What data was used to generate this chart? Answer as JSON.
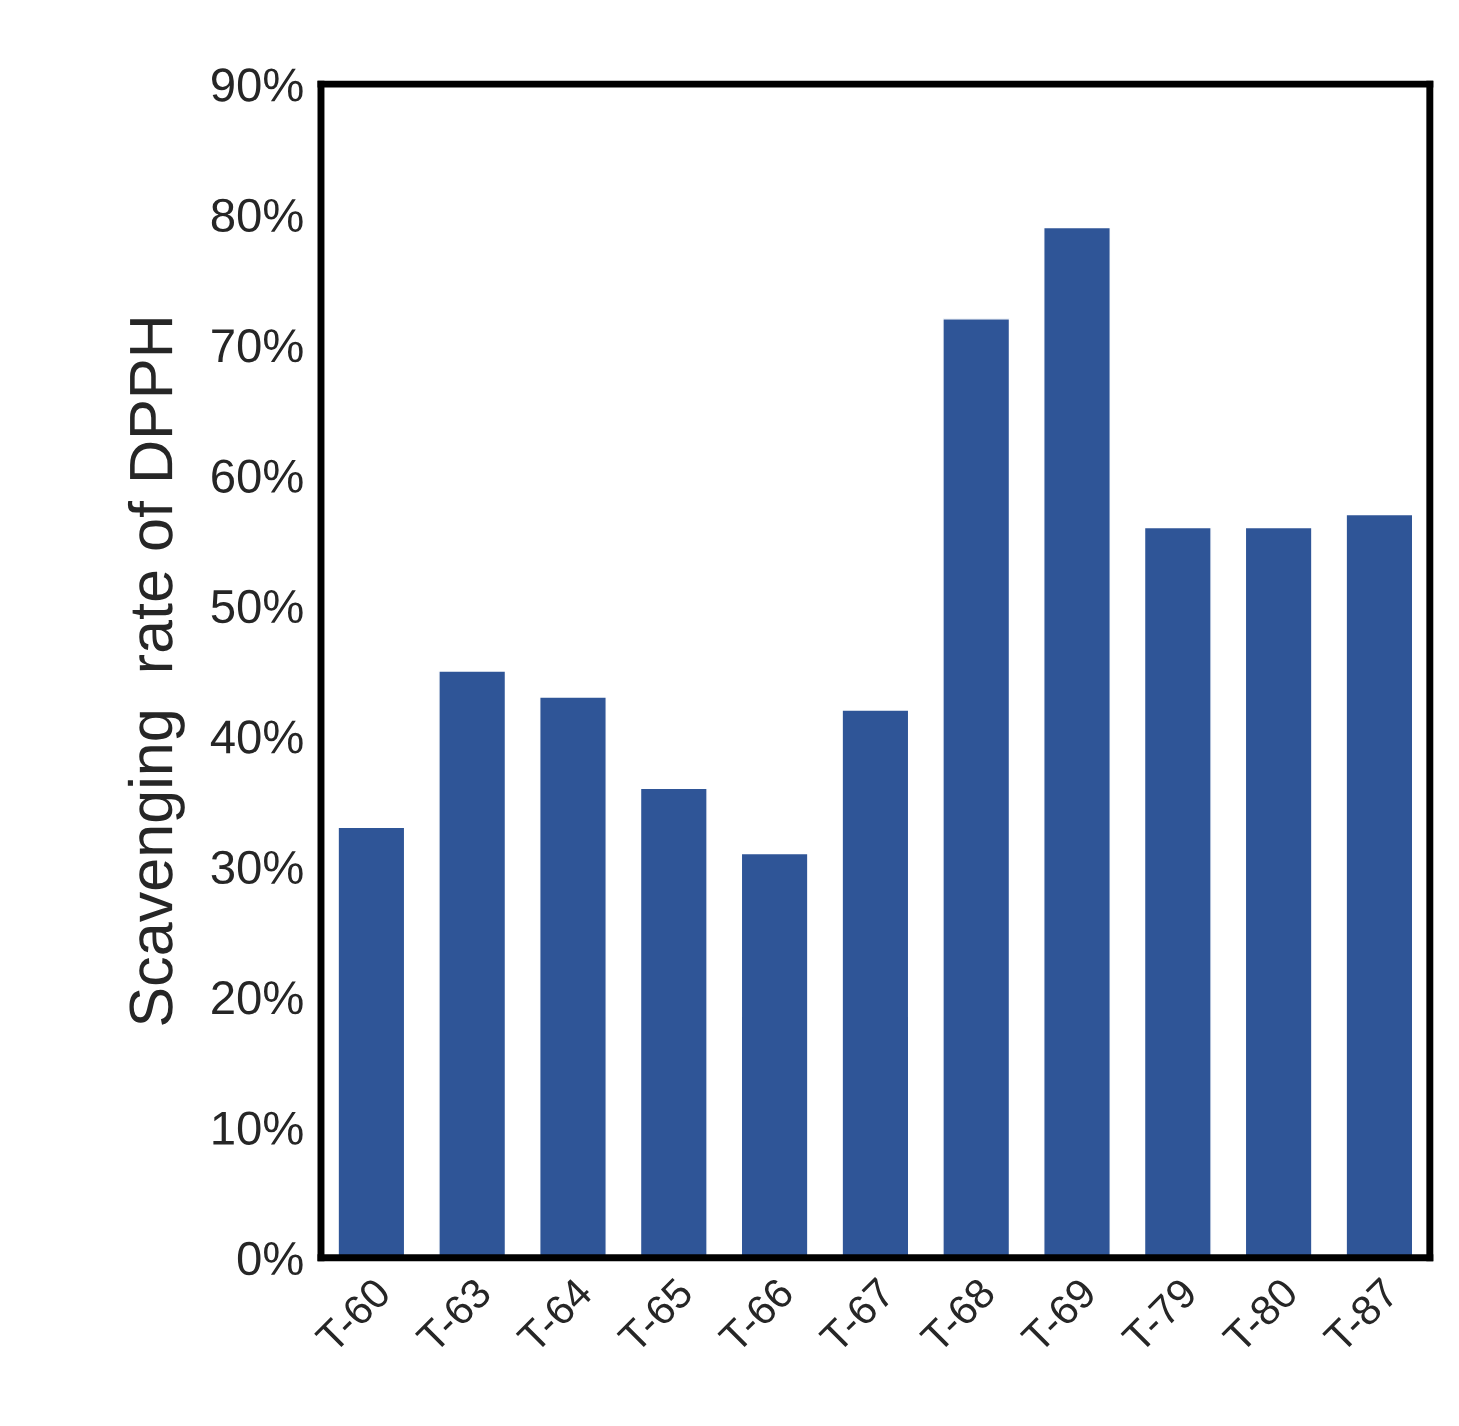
{
  "chart_data": {
    "type": "bar",
    "ylabel": "Scavenging  rate of DPPH",
    "categories": [
      "T-60",
      "T-63",
      "T-64",
      "T-65",
      "T-66",
      "T-67",
      "T-68",
      "T-69",
      "T-79",
      "T-80",
      "T-87"
    ],
    "values": [
      33,
      45,
      43,
      36,
      31,
      42,
      72,
      79,
      56,
      56,
      57
    ],
    "color": "#2f5597",
    "ylim": [
      0,
      90
    ],
    "yticks": [
      {
        "value": 0,
        "label": "0%"
      },
      {
        "value": 10,
        "label": "10%"
      },
      {
        "value": 20,
        "label": "20%"
      },
      {
        "value": 30,
        "label": "30%"
      },
      {
        "value": 40,
        "label": "40%"
      },
      {
        "value": 50,
        "label": "50%"
      },
      {
        "value": 60,
        "label": "60%"
      },
      {
        "value": 70,
        "label": "70%"
      },
      {
        "value": 80,
        "label": "80%"
      },
      {
        "value": 90,
        "label": "90%"
      }
    ],
    "grid": false,
    "legend": false
  }
}
